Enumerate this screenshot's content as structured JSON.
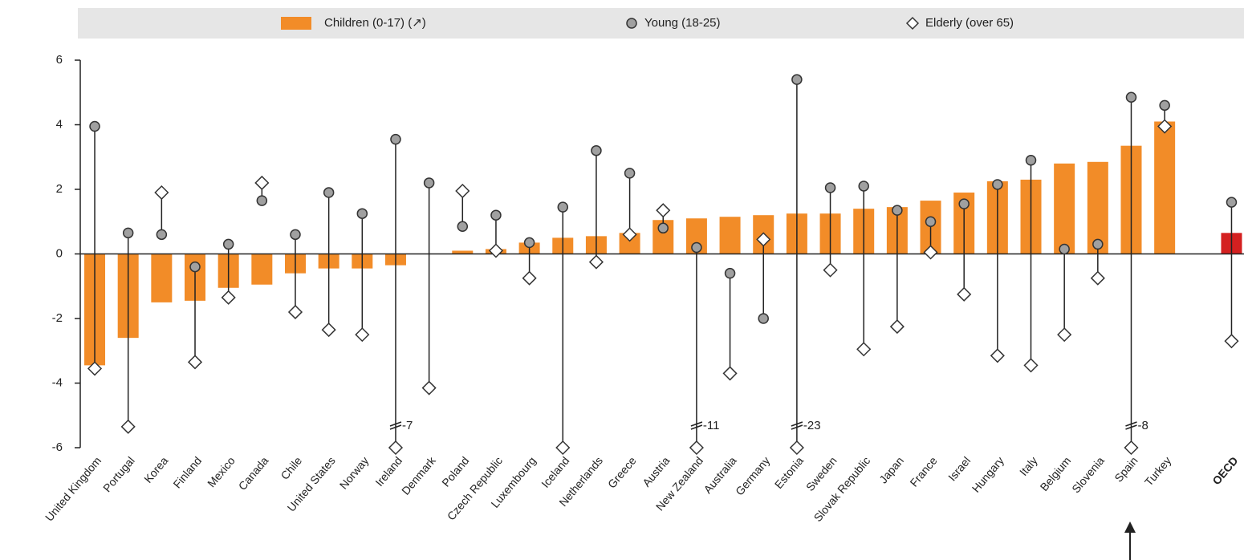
{
  "chart_data": {
    "type": "bar",
    "categories": [
      "United Kingdom",
      "Portugal",
      "Korea",
      "Finland",
      "Mexico",
      "Canada",
      "Chile",
      "United States",
      "Norway",
      "Ireland",
      "Denmark",
      "Poland",
      "Czech Republic",
      "Luxembourg",
      "Iceland",
      "Netherlands",
      "Greece",
      "Austria",
      "New Zealand",
      "Australia",
      "Germany",
      "Estonia",
      "Sweden",
      "Slovak Republic",
      "Japan",
      "France",
      "Israel",
      "Hungary",
      "Italy",
      "Belgium",
      "Slovenia",
      "Spain",
      "Turkey",
      null,
      "OECD"
    ],
    "series": [
      {
        "name": "Children (0-17) (↗)",
        "color": "#f28c28",
        "colors": [
          "#f28c28",
          "#f28c28",
          "#f28c28",
          "#f28c28",
          "#f28c28",
          "#f28c28",
          "#f28c28",
          "#f28c28",
          "#f28c28",
          "#f28c28",
          "#f28c28",
          "#f28c28",
          "#f28c28",
          "#f28c28",
          "#f28c28",
          "#f28c28",
          "#f28c28",
          "#f28c28",
          "#f28c28",
          "#f28c28",
          "#f28c28",
          "#f28c28",
          "#f28c28",
          "#f28c28",
          "#f28c28",
          "#f28c28",
          "#f28c28",
          "#f28c28",
          "#f28c28",
          "#f28c28",
          "#f28c28",
          "#f28c28",
          "#f28c28",
          null,
          "#d42020"
        ],
        "values": [
          -3.45,
          -2.6,
          -1.5,
          -1.45,
          -1.05,
          -0.95,
          -0.6,
          -0.45,
          -0.45,
          -0.35,
          0,
          0.1,
          0.15,
          0.35,
          0.5,
          0.55,
          0.65,
          1.05,
          1.1,
          1.15,
          1.2,
          1.25,
          1.25,
          1.4,
          1.45,
          1.65,
          1.9,
          2.25,
          2.3,
          2.8,
          2.85,
          3.35,
          4.1,
          null,
          0.65
        ]
      },
      {
        "name": "Young (18-25)",
        "color": "#a0a0a0",
        "values": [
          3.95,
          0.65,
          0.6,
          -0.4,
          0.3,
          1.65,
          0.6,
          1.9,
          1.25,
          3.55,
          2.2,
          0.85,
          1.2,
          0.35,
          1.45,
          3.2,
          2.5,
          0.8,
          0.2,
          -0.6,
          -2.0,
          5.4,
          2.05,
          2.1,
          1.35,
          1.0,
          1.55,
          2.15,
          2.9,
          0.15,
          0.3,
          4.85,
          4.6,
          null,
          1.6
        ]
      },
      {
        "name": "Elderly (over 65)",
        "color": "#ffffff",
        "values": [
          -3.55,
          -5.35,
          1.9,
          -3.35,
          -1.35,
          2.2,
          -1.8,
          -2.35,
          -2.5,
          -7,
          -4.15,
          1.95,
          0.1,
          -0.75,
          -6,
          -0.25,
          0.6,
          1.35,
          -11,
          -3.7,
          0.45,
          -23,
          -0.5,
          -2.95,
          -2.25,
          0.05,
          -1.25,
          -3.15,
          -3.45,
          -2.5,
          -0.75,
          -8,
          3.95,
          null,
          -2.7
        ],
        "value_labels": [
          null,
          null,
          null,
          null,
          null,
          null,
          null,
          null,
          null,
          "-7",
          null,
          null,
          null,
          null,
          null,
          null,
          null,
          null,
          "-11",
          null,
          null,
          "-23",
          null,
          null,
          null,
          null,
          null,
          null,
          null,
          null,
          null,
          "-8",
          null,
          null,
          null
        ]
      }
    ],
    "ylim": [
      -6,
      6
    ],
    "yticks": [
      -6,
      -4,
      -2,
      0,
      2,
      4,
      6
    ]
  }
}
